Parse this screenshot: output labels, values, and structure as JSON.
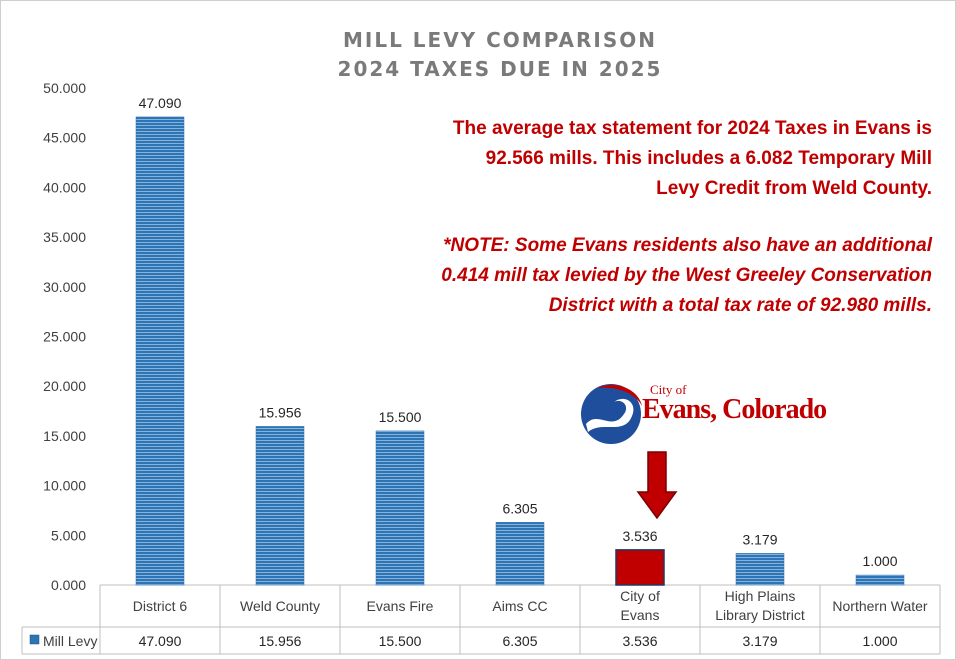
{
  "chart_data": {
    "type": "bar",
    "title": "MILL LEVY COMPARISON",
    "subtitle": "2024 TAXES DUE IN 2025",
    "categories": [
      "District 6",
      "Weld County",
      "Evans Fire",
      "Aims CC",
      "City of Evans",
      "High Plains Library District",
      "Northern Water"
    ],
    "series": [
      {
        "name": "Mill Levy",
        "values": [
          47.09,
          15.956,
          15.5,
          6.305,
          3.536,
          3.179,
          1.0
        ],
        "value_labels": [
          "47.090",
          "15.956",
          "15.500",
          "6.305",
          "3.536",
          "3.179",
          "1.000"
        ],
        "color": "#2e75b6",
        "highlight_index": 4,
        "highlight_color": "#c00000"
      }
    ],
    "ylim": [
      0,
      50
    ],
    "yticks": [
      "0.000",
      "5.000",
      "10.000",
      "15.000",
      "20.000",
      "25.000",
      "30.000",
      "35.000",
      "40.000",
      "45.000",
      "50.000"
    ],
    "data_table": true,
    "grid": false
  },
  "notes": {
    "line1": "The average tax statement for 2024 Taxes in Evans is",
    "line2": "92.566 mills. This includes a 6.082 Temporary Mill",
    "line3": "Levy Credit from Weld County.",
    "line4": "*NOTE: Some Evans residents also have an additional",
    "line5": "0.414 mill tax levied by the West Greeley Conservation",
    "line6": "District with a total tax rate of 92.980 mills."
  },
  "logo": {
    "top_text": "City of",
    "main_text": "Evans, Colorado"
  },
  "colors": {
    "bar": "#2e75b6",
    "highlight": "#c00000",
    "note_text": "#c00000",
    "title_text": "#7a7a7a"
  }
}
